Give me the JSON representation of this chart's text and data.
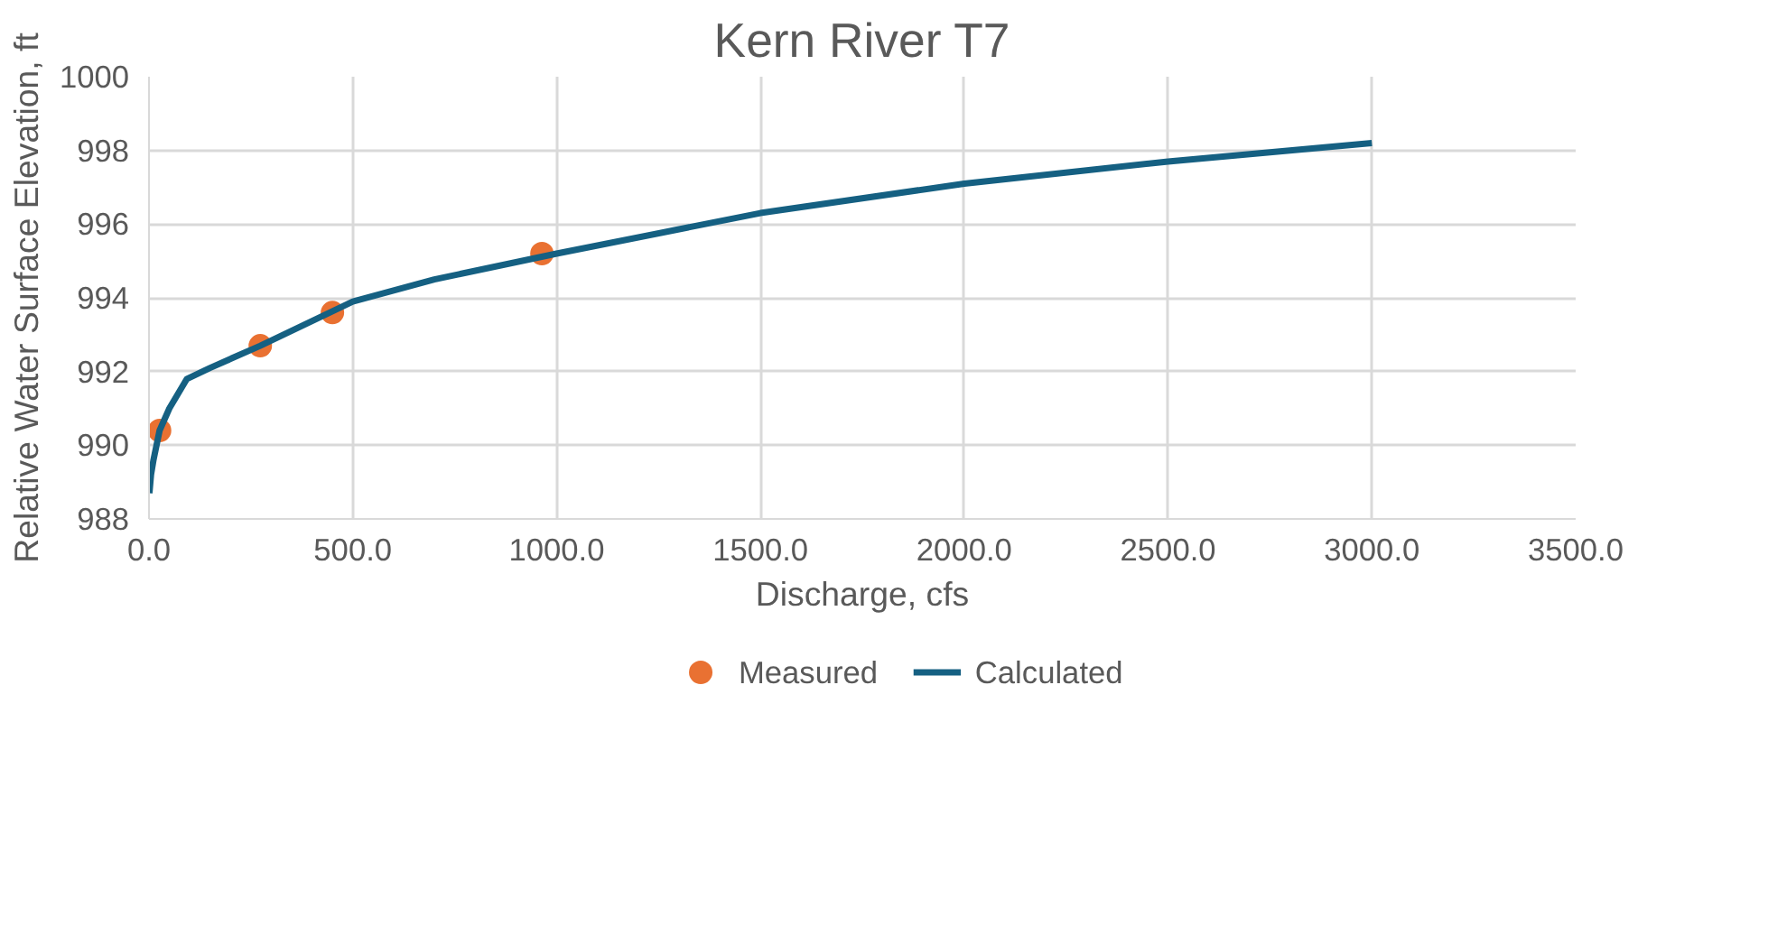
{
  "chart_data": {
    "type": "scatter",
    "title": "Kern River T7",
    "xlabel": "Discharge, cfs",
    "ylabel": "Relative Water Surface Elevation, ft",
    "xlim": [
      0,
      3500
    ],
    "xticks": [
      {
        "value": 0,
        "label": "0.0"
      },
      {
        "value": 500,
        "label": "500.0"
      },
      {
        "value": 1000,
        "label": "1000.0"
      },
      {
        "value": 1500,
        "label": "1500.0"
      },
      {
        "value": 2000,
        "label": "2000.0"
      },
      {
        "value": 2500,
        "label": "2500.0"
      },
      {
        "value": 3000,
        "label": "3000.0"
      },
      {
        "value": 3500,
        "label": "3500.0"
      }
    ],
    "ylim": [
      988,
      1000
    ],
    "yticks": [
      988,
      990,
      992,
      994,
      996,
      998,
      1000
    ],
    "grid": true,
    "legend": "bottom",
    "series": [
      {
        "name": "Measured",
        "type": "scatter",
        "marker": "circle",
        "color": "#e97132",
        "x": [
          26,
          273,
          450,
          964
        ],
        "values": [
          990.4,
          992.7,
          993.6,
          995.2
        ]
      },
      {
        "name": "Calculated",
        "type": "line",
        "marker": "none",
        "line_style": "solid",
        "color": "#156082",
        "x": [
          1,
          5,
          11,
          26,
          50,
          93,
          150,
          273,
          500,
          700,
          1000,
          1500,
          2000,
          2500,
          3000
        ],
        "values": [
          988.7,
          989.2,
          989.6,
          990.4,
          991.0,
          991.8,
          992.1,
          992.7,
          993.9,
          994.5,
          995.2,
          996.3,
          997.1,
          997.7,
          998.2
        ]
      }
    ]
  }
}
